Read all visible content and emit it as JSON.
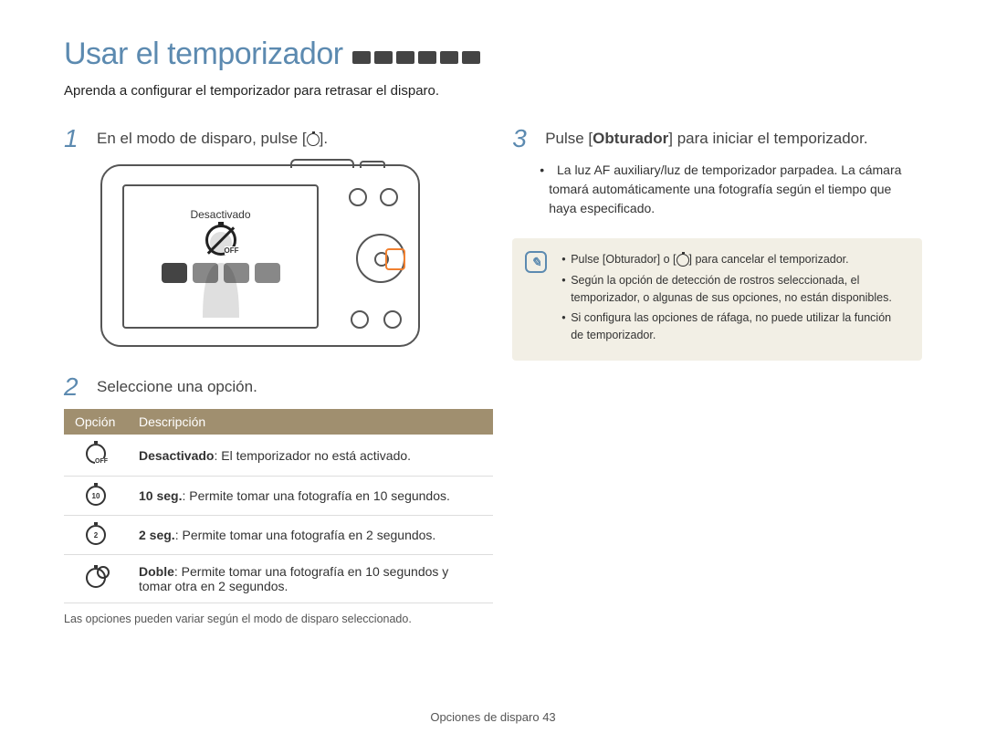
{
  "colors": {
    "accent": "#5c8ab0",
    "tableHeader": "#a08f6f",
    "noteBg": "#f2efe5",
    "highlight": "#f08030"
  },
  "header": {
    "title": "Usar el temporizador"
  },
  "subtitle": "Aprenda a configurar el temporizador para retrasar el disparo.",
  "left": {
    "step1": {
      "num": "1",
      "text_pre": "En el modo de disparo, pulse [",
      "text_post": "]."
    },
    "cameraScreen": {
      "label": "Desactivado",
      "offText": "OFF"
    },
    "step2": {
      "num": "2",
      "text": "Seleccione una opción."
    },
    "table": {
      "headers": {
        "opt": "Opción",
        "desc": "Descripción"
      },
      "rows": [
        {
          "iconClass": "off",
          "iconSub": "",
          "desc_bold": "Desactivado",
          "desc_rest": ": El temporizador no está activado."
        },
        {
          "iconClass": "t10",
          "iconSub": "10",
          "desc_bold": "10 seg.",
          "desc_rest": ": Permite tomar una fotografía en 10 segundos."
        },
        {
          "iconClass": "t2",
          "iconSub": "2",
          "desc_bold": "2 seg.",
          "desc_rest": ": Permite tomar una fotografía en 2 segundos."
        },
        {
          "iconClass": "doublei",
          "iconSub": "",
          "desc_bold": "Doble",
          "desc_rest": ": Permite tomar una fotografía en 10 segundos y tomar otra en 2 segundos."
        }
      ]
    },
    "footnote": "Las opciones pueden variar según el modo de disparo seleccionado."
  },
  "right": {
    "step3": {
      "num": "3",
      "text_pre": "Pulse [",
      "text_key": "Obturador",
      "text_post": "] para iniciar el temporizador."
    },
    "bullet": "La luz AF auxiliary/luz de temporizador parpadea. La cámara tomará automáticamente una fotografía según el tiempo que haya especificado.",
    "noteItems": [
      "Pulse [Obturador] o [  ] para cancelar el temporizador.",
      "Según la opción de detección de rostros seleccionada, el temporizador, o algunas de sus opciones, no están disponibles.",
      "Si configura las opciones de ráfaga, no puede utilizar la función de temporizador."
    ]
  },
  "footer": {
    "section": "Opciones de disparo",
    "page": "43"
  }
}
